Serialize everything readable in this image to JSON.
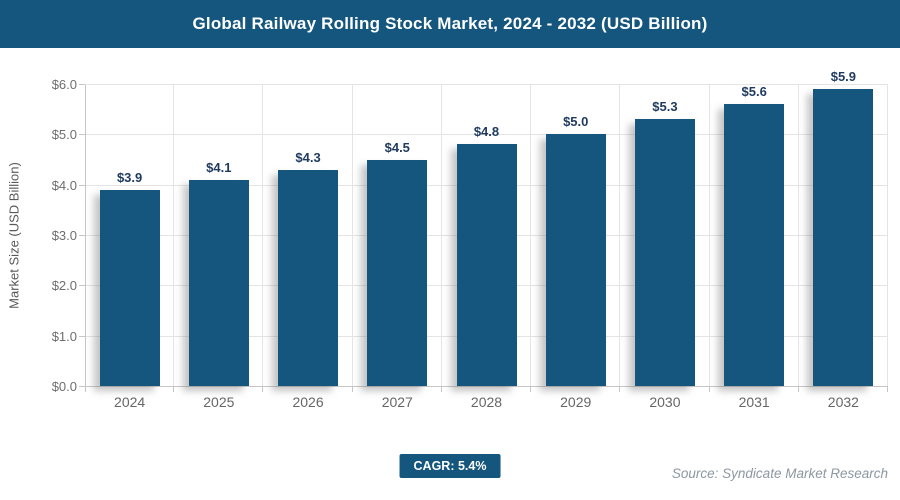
{
  "header": {
    "title": "Global Railway Rolling Stock Market, 2024 - 2032 (USD Billion)"
  },
  "chart_data": {
    "type": "bar",
    "title": "Global Railway Rolling Stock Market, 2024 - 2032 (USD Billion)",
    "categories": [
      "2024",
      "2025",
      "2026",
      "2027",
      "2028",
      "2029",
      "2030",
      "2031",
      "2032"
    ],
    "values": [
      3.9,
      4.1,
      4.3,
      4.5,
      4.8,
      5.0,
      5.3,
      5.6,
      5.9
    ],
    "bar_labels": [
      "$3.9",
      "$4.1",
      "$4.3",
      "$4.5",
      "$4.8",
      "$5.0",
      "$5.3",
      "$5.6",
      "$5.9"
    ],
    "xlabel": "",
    "ylabel": "Market Size (USD Billion)",
    "ylim": [
      0,
      6
    ],
    "ytick_labels": [
      "$0.0",
      "$1.0",
      "$2.0",
      "$3.0",
      "$4.0",
      "$5.0",
      "$6.0"
    ],
    "grid": true,
    "legend": "none",
    "colors": {
      "brand_blue": "#14567E",
      "bar": "#14567E",
      "value_label": "#1E3A5F",
      "axis_text": "#6E6E6E",
      "gridline": "#E4E4E4"
    }
  },
  "footer": {
    "cagr_badge": "CAGR: 5.4%",
    "source": "Source: Syndicate Market Research"
  }
}
